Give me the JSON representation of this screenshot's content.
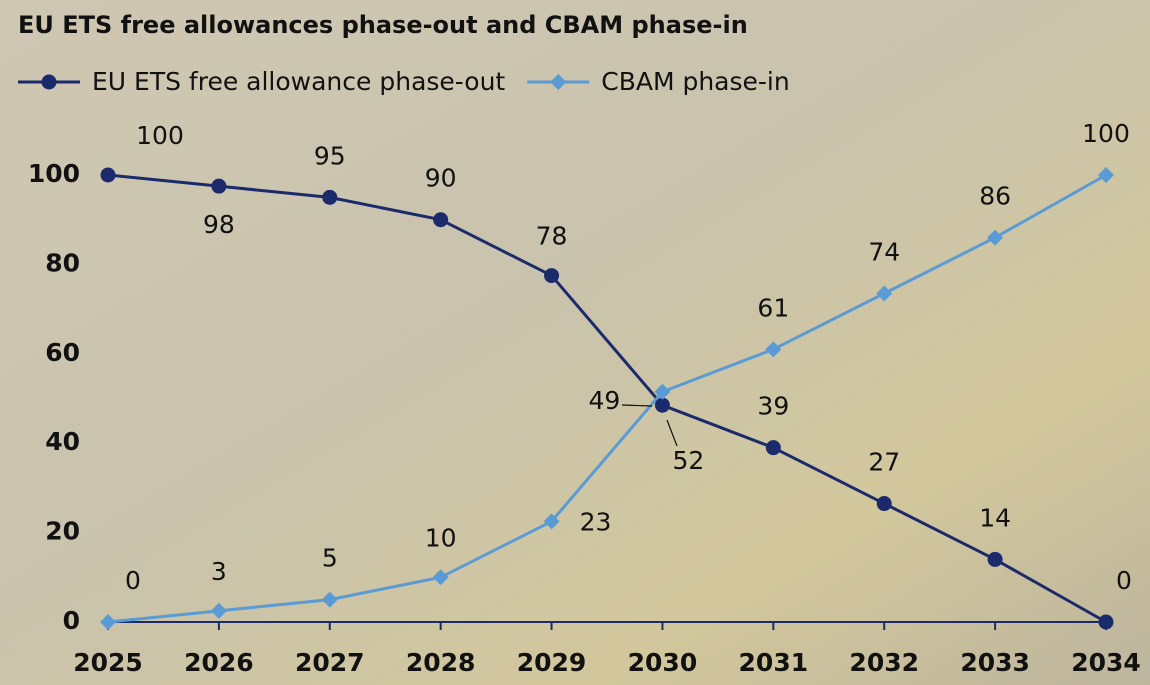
{
  "chart_data": {
    "type": "line",
    "title": "EU ETS free allowances phase-out and CBAM phase-in",
    "categories": [
      "2025",
      "2026",
      "2027",
      "2028",
      "2029",
      "2030",
      "2031",
      "2032",
      "2033",
      "2034"
    ],
    "series": [
      {
        "name": "EU ETS free allowance phase-out",
        "color": "#1b2a6b",
        "marker": "circle",
        "values": [
          100,
          97.5,
          95,
          90,
          77.5,
          48.5,
          39,
          26.5,
          14,
          0
        ],
        "value_labels": [
          "100",
          "98",
          "95",
          "90",
          "78",
          "49",
          "39",
          "27",
          "14",
          "0"
        ]
      },
      {
        "name": "CBAM phase-in",
        "color": "#5b9bd5",
        "marker": "diamond",
        "values": [
          0,
          2.5,
          5,
          10,
          22.5,
          51.5,
          61,
          73.5,
          86,
          100
        ],
        "value_labels": [
          "0",
          "3",
          "5",
          "10",
          "23",
          "52",
          "61",
          "74",
          "86",
          "100"
        ]
      }
    ],
    "ylim": [
      0,
      100
    ],
    "yticks": [
      0,
      20,
      40,
      60,
      80,
      100
    ],
    "grid": false,
    "legend": "top-left"
  }
}
